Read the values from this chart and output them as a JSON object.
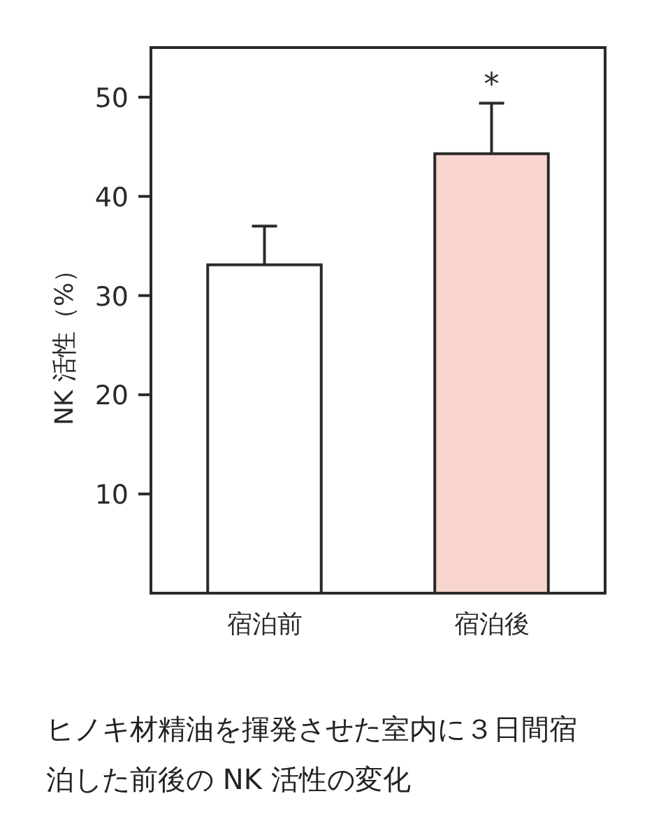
{
  "chart_data": {
    "type": "bar",
    "categories": [
      "宿泊前",
      "宿泊後"
    ],
    "values": [
      33.1,
      44.3
    ],
    "colors": [
      "#ffffff",
      "#f9d5cf"
    ],
    "errors": [
      [
        33.1,
        37.0
      ],
      [
        44.3,
        49.4
      ]
    ],
    "ylabel": "NK 活性（%）",
    "ylim": [
      0,
      55
    ],
    "yticks": [
      10,
      20,
      30,
      40,
      50
    ],
    "grid": false,
    "annotations": [
      {
        "text": "*",
        "x": "宿泊後",
        "y": 49.4
      },
      "ヒノキ材精油を揮発させた室内に３日間宿泊した前後の NK 活性の変化"
    ]
  }
}
